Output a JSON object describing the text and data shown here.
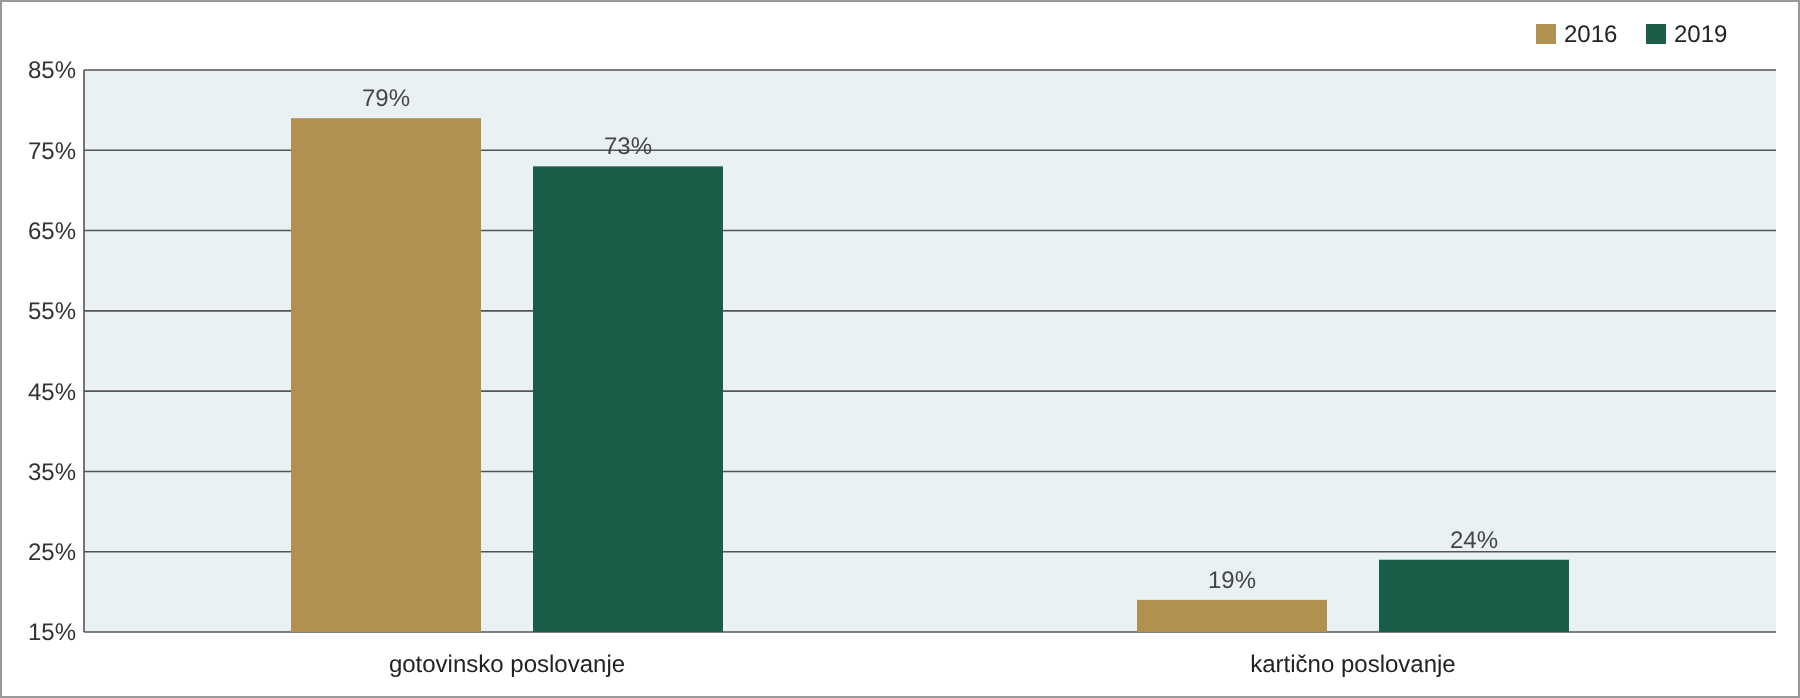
{
  "chart_data": {
    "type": "bar",
    "categories": [
      "gotovinsko poslovanje",
      "kartično poslovanje"
    ],
    "series": [
      {
        "name": "2016",
        "color": "#b0914f",
        "values": [
          79,
          19
        ],
        "value_labels": [
          "79%",
          "19%"
        ]
      },
      {
        "name": "2019",
        "color": "#1a5e4a",
        "values": [
          73,
          24
        ],
        "value_labels": [
          "73%",
          "24%"
        ]
      }
    ],
    "ylim": [
      15,
      85
    ],
    "yticks": [
      {
        "value": 15,
        "label": "15%"
      },
      {
        "value": 25,
        "label": "25%"
      },
      {
        "value": 35,
        "label": "35%"
      },
      {
        "value": 45,
        "label": "45%"
      },
      {
        "value": 55,
        "label": "55%"
      },
      {
        "value": 65,
        "label": "65%"
      },
      {
        "value": 75,
        "label": "75%"
      },
      {
        "value": 85,
        "label": "85%"
      }
    ],
    "grid": "y",
    "legend": "top right"
  }
}
